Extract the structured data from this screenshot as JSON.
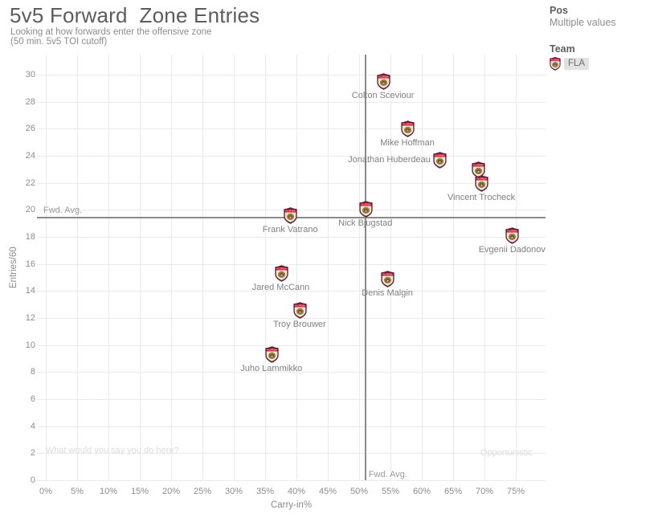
{
  "header": {
    "title": "5v5 Forward  Zone Entries",
    "subtitle_line1": "Looking at how forwards enter the offensive zone",
    "subtitle_line2": "(50 min. 5v5 TOI cutoff)"
  },
  "legend": {
    "pos_label": "Pos",
    "pos_value": "Multiple values",
    "team_label": "Team",
    "team_value": "FLA",
    "team_icon": "fla-panthers-shield-logo"
  },
  "chart_data": {
    "type": "scatter",
    "title": "5v5 Forward Zone Entries",
    "xlabel": "Carry-in%",
    "ylabel": "Entries/60",
    "xlim": [
      -1.5,
      79.7
    ],
    "ylim": [
      0,
      31.5
    ],
    "grid": true,
    "marker_icon": "fla-panthers-shield-logo",
    "x_ticks": [
      {
        "value": 0,
        "label": "0%"
      },
      {
        "value": 5,
        "label": "5%"
      },
      {
        "value": 10,
        "label": "10%"
      },
      {
        "value": 15,
        "label": "15%"
      },
      {
        "value": 20,
        "label": "20%"
      },
      {
        "value": 25,
        "label": "25%"
      },
      {
        "value": 30,
        "label": "30%"
      },
      {
        "value": 35,
        "label": "35%"
      },
      {
        "value": 40,
        "label": "40%"
      },
      {
        "value": 45,
        "label": "45%"
      },
      {
        "value": 50,
        "label": "50%"
      },
      {
        "value": 55,
        "label": "55%"
      },
      {
        "value": 60,
        "label": "60%"
      },
      {
        "value": 65,
        "label": "65%"
      },
      {
        "value": 70,
        "label": "70%"
      },
      {
        "value": 75,
        "label": "75%"
      }
    ],
    "y_ticks": [
      {
        "value": 0,
        "label": "0"
      },
      {
        "value": 2,
        "label": "2"
      },
      {
        "value": 4,
        "label": "4"
      },
      {
        "value": 6,
        "label": "6"
      },
      {
        "value": 8,
        "label": "8"
      },
      {
        "value": 10,
        "label": "10"
      },
      {
        "value": 12,
        "label": "12"
      },
      {
        "value": 14,
        "label": "14"
      },
      {
        "value": 16,
        "label": "16"
      },
      {
        "value": 18,
        "label": "18"
      },
      {
        "value": 20,
        "label": "20"
      },
      {
        "value": 22,
        "label": "22"
      },
      {
        "value": 24,
        "label": "24"
      },
      {
        "value": 26,
        "label": "26"
      },
      {
        "value": 28,
        "label": "28"
      },
      {
        "value": 30,
        "label": "30"
      }
    ],
    "points": [
      {
        "name": "Colton Sceviour",
        "carry_in_pct": 53.8,
        "entries_per_60": 29.5,
        "label_pos": "below"
      },
      {
        "name": "Mike Hoffman",
        "carry_in_pct": 57.7,
        "entries_per_60": 26.0,
        "label_pos": "below"
      },
      {
        "name": "Jonathan Huberdeau",
        "carry_in_pct": 62.8,
        "entries_per_60": 23.7,
        "label_pos": "left"
      },
      {
        "name": "",
        "carry_in_pct": 69.0,
        "entries_per_60": 23.0,
        "label_pos": "none"
      },
      {
        "name": "Vincent Trocheck",
        "carry_in_pct": 69.5,
        "entries_per_60": 22.0,
        "label_pos": "below"
      },
      {
        "name": "Nick Bjugstad",
        "carry_in_pct": 51.0,
        "entries_per_60": 20.1,
        "label_pos": "below"
      },
      {
        "name": "Frank Vatrano",
        "carry_in_pct": 39.0,
        "entries_per_60": 19.6,
        "label_pos": "below"
      },
      {
        "name": "Evgenii Dadonov",
        "carry_in_pct": 74.4,
        "entries_per_60": 18.1,
        "label_pos": "below"
      },
      {
        "name": "Jared McCann",
        "carry_in_pct": 37.5,
        "entries_per_60": 15.3,
        "label_pos": "below"
      },
      {
        "name": "Denis Malgin",
        "carry_in_pct": 54.5,
        "entries_per_60": 14.9,
        "label_pos": "below"
      },
      {
        "name": "Troy Brouwer",
        "carry_in_pct": 40.5,
        "entries_per_60": 12.6,
        "label_pos": "below"
      },
      {
        "name": "Juho Lammikko",
        "carry_in_pct": 36.0,
        "entries_per_60": 9.3,
        "label_pos": "below"
      }
    ],
    "reference_lines": {
      "horizontal": {
        "value": 19.4,
        "label": "Fwd. Avg."
      },
      "vertical": {
        "value": 51.0,
        "label": "Fwd. Avg."
      }
    },
    "annotations": [
      {
        "text": "What would you say you do here?",
        "x": 10.6,
        "y": 2.2
      },
      {
        "text": "Opportunistic",
        "x": 73.5,
        "y": 2.0
      }
    ],
    "colors": {
      "grid": "#eaeaea",
      "reference_line": "#8a8a8a",
      "tick_text": "#8c8c8c",
      "point_label_text": "#7f7f7f",
      "annotation_text": "#dcdcdc",
      "logo_navy": "#1b2a4a",
      "logo_red": "#c8102e",
      "logo_cream": "#efe7d2",
      "logo_gold": "#9d7c42"
    }
  }
}
